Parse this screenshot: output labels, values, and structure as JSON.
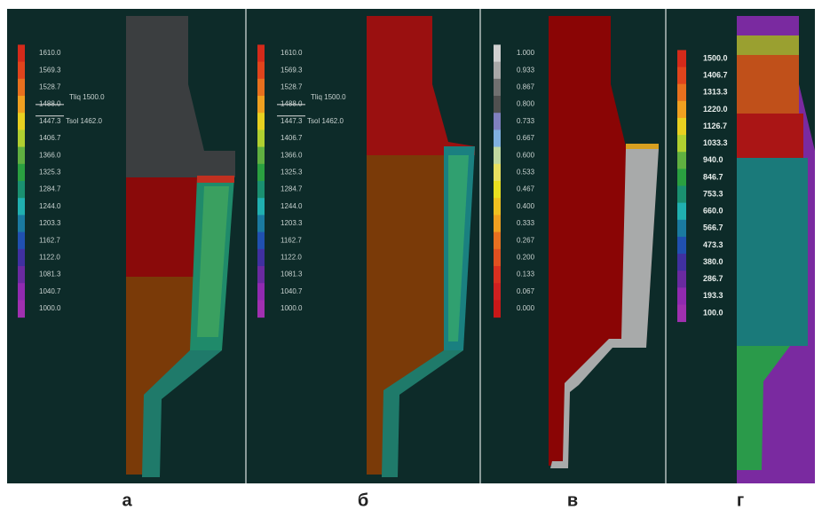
{
  "panels": [
    {
      "legend": [
        "1610.0",
        "1569.3",
        "1528.7",
        "1488.0",
        "1447.3",
        "1406.7",
        "1366.0",
        "1325.3",
        "1284.7",
        "1244.0",
        "1203.3",
        "1162.7",
        "1122.0",
        "1081.3",
        "1040.7",
        "1000.0"
      ],
      "annotations": [
        "Tliq 1500.0",
        "Tsol 1462.0"
      ],
      "caption": "а"
    },
    {
      "legend": [
        "1610.0",
        "1569.3",
        "1528.7",
        "1488.0",
        "1447.3",
        "1406.7",
        "1366.0",
        "1325.3",
        "1284.7",
        "1244.0",
        "1203.3",
        "1162.7",
        "1122.0",
        "1081.3",
        "1040.7",
        "1000.0"
      ],
      "annotations": [
        "Tliq 1500.0",
        "Tsol 1462.0"
      ],
      "caption": "б"
    },
    {
      "legend": [
        "1.000",
        "0.933",
        "0.867",
        "0.800",
        "0.733",
        "0.667",
        "0.600",
        "0.533",
        "0.467",
        "0.400",
        "0.333",
        "0.267",
        "0.200",
        "0.133",
        "0.067",
        "0.000"
      ],
      "caption": "в"
    },
    {
      "legend": [
        "1500.0",
        "1406.7",
        "1313.3",
        "1220.0",
        "1126.7",
        "1033.3",
        "940.0",
        "846.7",
        "753.3",
        "660.0",
        "566.7",
        "473.3",
        "380.0",
        "286.7",
        "193.3",
        "100.0"
      ],
      "caption": "г"
    }
  ]
}
